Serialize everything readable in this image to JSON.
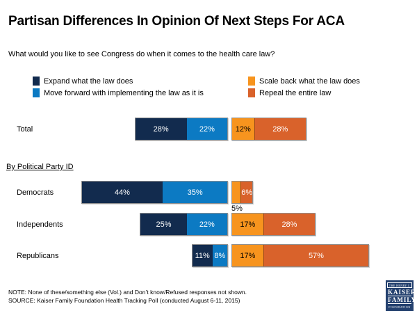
{
  "header": {
    "title": "Partisan Differences In Opinion Of Next Steps For ACA",
    "question": "What would you like to see Congress do when it comes to the health care law?"
  },
  "chart_data": {
    "type": "diverging-stacked-bar",
    "title": "Partisan Differences In Opinion Of Next Steps For ACA",
    "subtitle": "What would you like to see Congress do when it comes to the health care law?",
    "unit": "%",
    "legend_position": "top",
    "axes": "none (segment data labels only)",
    "section_label": "By Political Party ID",
    "categories": [
      "Total",
      "Democrats",
      "Independents",
      "Republicans"
    ],
    "series": [
      {
        "name": "Expand what the law does",
        "color": "#122B4E",
        "label_color": "#ffffff",
        "side": "left",
        "values": [
          28,
          44,
          25,
          11
        ]
      },
      {
        "name": "Move forward with implementing the law as it is",
        "color": "#0C7AC3",
        "label_color": "#ffffff",
        "side": "left",
        "values": [
          22,
          35,
          22,
          8
        ]
      },
      {
        "name": "Scale back what the law does",
        "color": "#F7941E",
        "label_color": "#000000",
        "side": "right",
        "values": [
          12,
          5,
          17,
          17
        ]
      },
      {
        "name": "Repeal the entire law",
        "color": "#D9622B",
        "label_color": "#ffffff",
        "side": "right",
        "values": [
          28,
          6,
          28,
          57
        ]
      }
    ],
    "labels_below_bar": [
      {
        "category": "Democrats",
        "series": "Scale back what the law does",
        "label": "5%"
      }
    ]
  },
  "footer": {
    "note": "NOTE: None of these/something else (Vol.) and Don’t know/Refused responses not shown.",
    "source": "SOURCE: Kaiser Family Foundation Health Tracking Poll (conducted August 6-11, 2015)"
  },
  "logo": {
    "top": "THE HENRY J.",
    "name_line1": "KAISER",
    "name_line2": "FAMILY",
    "bottom": "FOUNDATION",
    "background": "#24416F"
  }
}
